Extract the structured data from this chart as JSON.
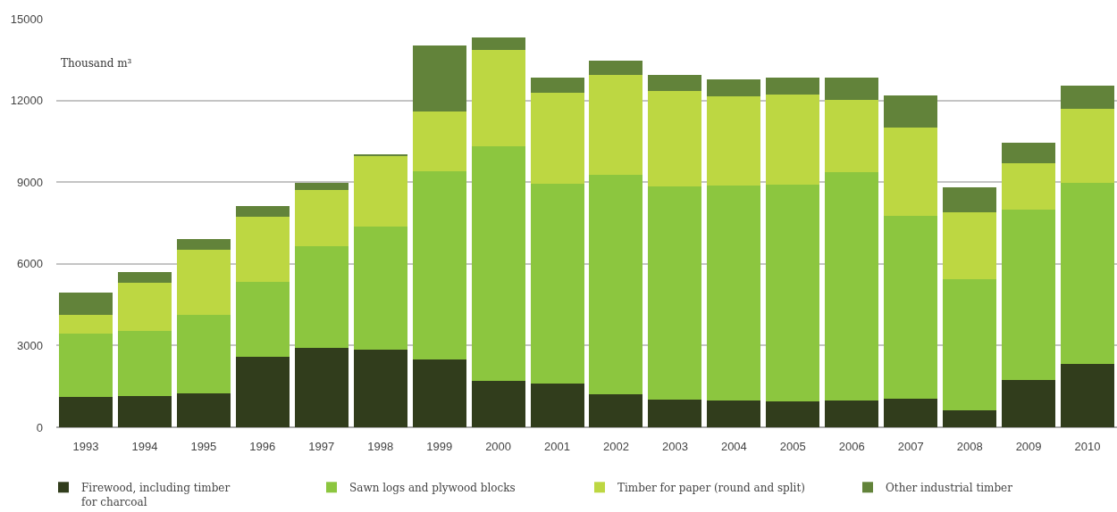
{
  "chart_data": {
    "type": "bar",
    "stacked": true,
    "ylabel": "Thousand m³",
    "categories": [
      "1993",
      "1994",
      "1995",
      "1996",
      "1997",
      "1998",
      "1999",
      "2000",
      "2001",
      "2002",
      "2003",
      "2004",
      "2005",
      "2006",
      "2007",
      "2008",
      "2009",
      "2010"
    ],
    "series": [
      {
        "name": "Firewood, including timber\nfor charcoal",
        "color": "#313d1c",
        "values": [
          1110,
          1150,
          1250,
          2590,
          2920,
          2850,
          2490,
          1700,
          1600,
          1210,
          1020,
          980,
          950,
          980,
          1050,
          620,
          1740,
          2330
        ]
      },
      {
        "name": "Sawn logs and plywood blocks",
        "color": "#8cc63f",
        "values": [
          2330,
          2390,
          2880,
          2750,
          3730,
          4520,
          6910,
          8610,
          7340,
          8060,
          7830,
          7890,
          7960,
          8380,
          6710,
          4820,
          6260,
          6650
        ]
      },
      {
        "name": "Timber for paper (round and split)",
        "color": "#bdd742",
        "values": [
          700,
          1770,
          2390,
          2390,
          2060,
          2590,
          2190,
          3540,
          3340,
          3670,
          3500,
          3280,
          3310,
          2650,
          3240,
          2460,
          1700,
          2720
        ]
      },
      {
        "name": "Other industrial timber",
        "color": "#62833a",
        "values": [
          810,
          390,
          390,
          390,
          260,
          70,
          2420,
          460,
          560,
          520,
          590,
          620,
          620,
          820,
          1180,
          920,
          750,
          850
        ]
      }
    ],
    "ylim": [
      0,
      15000
    ],
    "yticks": [
      0,
      3000,
      6000,
      9000,
      12000,
      15000
    ],
    "grid": "y",
    "legend": "bottom"
  }
}
